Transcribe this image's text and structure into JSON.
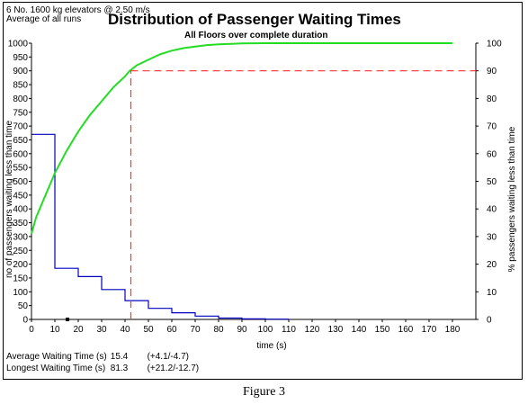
{
  "header": {
    "config_line": "6 No. 1600 kg elevators @ 2.50 m/s",
    "runs_line": "Average of all runs"
  },
  "stats": {
    "avg_label": "Average Waiting Time (s)",
    "avg_value": "15.4",
    "avg_range": "(+4.1/-4.7)",
    "long_label": "Longest Waiting Time (s)",
    "long_value": "81.3",
    "long_range": "(+21.2/-12.7)"
  },
  "caption": "Figure 3",
  "chart_data": {
    "type": "line",
    "title": "Distribution of Passenger Waiting Times",
    "subtitle": "All Floors over complete duration",
    "xlabel": "time (s)",
    "ylabel_left": "no of passengers waiting less than time",
    "ylabel_right": "% passengers waiting less than time",
    "xlim": [
      0,
      190
    ],
    "ylim_left": [
      0,
      1000
    ],
    "ylim_right": [
      0,
      100
    ],
    "x_ticks": [
      0,
      10,
      20,
      30,
      40,
      50,
      60,
      70,
      80,
      90,
      100,
      110,
      120,
      130,
      140,
      150,
      160,
      170,
      180
    ],
    "y_left_ticks": [
      0,
      50,
      100,
      150,
      200,
      250,
      300,
      350,
      400,
      450,
      500,
      550,
      600,
      650,
      700,
      750,
      800,
      850,
      900,
      950,
      1000
    ],
    "y_right_ticks": [
      0,
      10,
      20,
      30,
      40,
      50,
      60,
      70,
      80,
      90,
      100
    ],
    "colors": {
      "histogram": "#0000c0",
      "cumulative": "#22dd22",
      "percentile": "#ff3333"
    },
    "series": [
      {
        "kind": "step",
        "axis": "left",
        "points": [
          [
            0,
            670
          ],
          [
            10,
            670
          ],
          [
            10,
            185
          ],
          [
            20,
            185
          ],
          [
            20,
            155
          ],
          [
            30,
            155
          ],
          [
            30,
            108
          ],
          [
            40,
            108
          ],
          [
            40,
            68
          ],
          [
            50,
            68
          ],
          [
            50,
            40
          ],
          [
            60,
            40
          ],
          [
            60,
            24
          ],
          [
            70,
            24
          ],
          [
            70,
            12
          ],
          [
            80,
            12
          ],
          [
            80,
            5
          ],
          [
            90,
            5
          ],
          [
            90,
            2
          ],
          [
            100,
            2
          ],
          [
            100,
            1
          ],
          [
            110,
            1
          ]
        ]
      },
      {
        "kind": "line",
        "axis": "right",
        "points": [
          [
            0,
            31
          ],
          [
            2,
            37
          ],
          [
            4,
            41
          ],
          [
            6,
            45
          ],
          [
            8,
            49
          ],
          [
            10,
            53
          ],
          [
            15,
            61
          ],
          [
            20,
            68
          ],
          [
            25,
            74
          ],
          [
            30,
            79
          ],
          [
            35,
            84
          ],
          [
            40,
            88
          ],
          [
            42,
            90
          ],
          [
            45,
            92
          ],
          [
            50,
            94
          ],
          [
            55,
            96
          ],
          [
            60,
            97.3
          ],
          [
            65,
            98.2
          ],
          [
            70,
            98.8
          ],
          [
            75,
            99.3
          ],
          [
            80,
            99.6
          ],
          [
            90,
            99.9
          ],
          [
            100,
            100
          ],
          [
            180,
            100
          ]
        ]
      },
      {
        "kind": "reference",
        "axis": "right",
        "x": 42.5,
        "y": 90
      }
    ],
    "marker_x": 15.4
  }
}
